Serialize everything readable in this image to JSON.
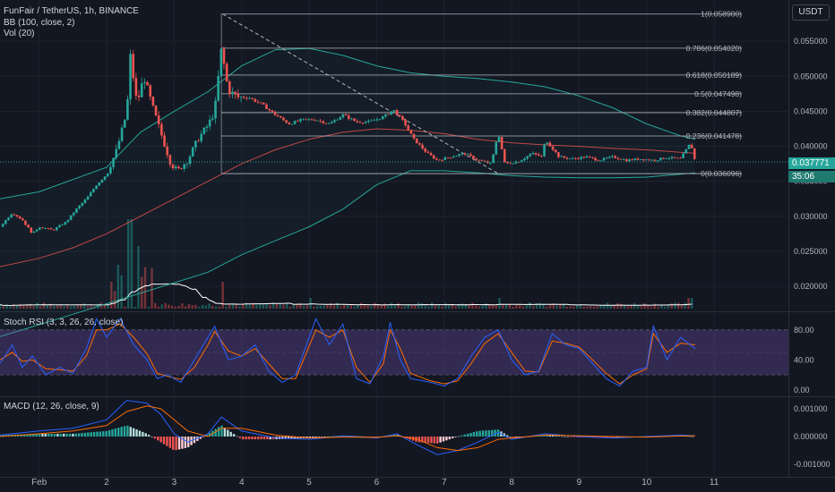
{
  "header": {
    "symbol_line": "FunFair / TetherUS, 1h, BINANCE",
    "bb_line": "BB (100, close, 2)",
    "vol_line": "Vol (20)",
    "currency": "USDT"
  },
  "price_badge": {
    "last": "0.037771",
    "countdown": "35:06"
  },
  "colors": {
    "bg": "#131722",
    "grid": "#1e222d",
    "up": "#26a69a",
    "down": "#ef5350",
    "bb_band": "#26a69a",
    "bb_mid": "#ef5350",
    "fib": "#b2b5be",
    "stoch_k": "#2962ff",
    "stoch_d": "#ff6d00",
    "stoch_fill": "#7e57c2",
    "macd_line": "#2962ff",
    "signal_line": "#ff6d00",
    "vol_ma": "#ffffff"
  },
  "chart_data": [
    {
      "type": "candlestick",
      "symbol": "FunFair / TetherUS",
      "interval": "1h",
      "exchange": "BINANCE",
      "ylim": [
        0.0168,
        0.0604
      ],
      "y_ticks": [
        "0.055000",
        "0.050000",
        "0.045000",
        "0.040000",
        "0.035000",
        "0.030000",
        "0.025000",
        "0.020000"
      ],
      "y_tick_values": [
        0.055,
        0.05,
        0.045,
        0.04,
        0.035,
        0.03,
        0.025,
        0.02
      ],
      "x_ticks": [
        "Feb",
        "2",
        "3",
        "4",
        "5",
        "6",
        "7",
        "8",
        "9",
        "10",
        "11"
      ],
      "x_tick_days": [
        1,
        2,
        3,
        4,
        5,
        6,
        7,
        8,
        9,
        10,
        11
      ],
      "x_range_days": [
        0.42,
        12.1
      ],
      "fib_levels": [
        {
          "ratio": "1",
          "label": "1(0.058900)",
          "value": 0.0589
        },
        {
          "ratio": "0.786",
          "label": "0.786(0.054020)",
          "value": 0.05402
        },
        {
          "ratio": "0.618",
          "label": "0.618(0.050189)",
          "value": 0.050189
        },
        {
          "ratio": "0.5",
          "label": "0.5(0.047498)",
          "value": 0.047498
        },
        {
          "ratio": "0.382",
          "label": "0.382(0.044807)",
          "value": 0.044807
        },
        {
          "ratio": "0.236",
          "label": "0.236(0.041478)",
          "value": 0.041478
        },
        {
          "ratio": "0",
          "label": "0(0.036096)",
          "value": 0.036096
        }
      ],
      "fib_start_day": 3.7,
      "fib_trend_line": {
        "from": [
          3.72,
          0.0589
        ],
        "to": [
          7.8,
          0.0361
        ]
      },
      "last_price": 0.037771,
      "price_points": [
        [
          0.42,
          0.0285
        ],
        [
          0.6,
          0.0305
        ],
        [
          0.75,
          0.0295
        ],
        [
          0.9,
          0.0275
        ],
        [
          1.0,
          0.0285
        ],
        [
          1.2,
          0.028
        ],
        [
          1.4,
          0.0292
        ],
        [
          1.55,
          0.031
        ],
        [
          1.7,
          0.0325
        ],
        [
          1.85,
          0.0345
        ],
        [
          2.0,
          0.036
        ],
        [
          2.15,
          0.0395
        ],
        [
          2.3,
          0.045
        ],
        [
          2.35,
          0.053
        ],
        [
          2.45,
          0.046
        ],
        [
          2.55,
          0.05
        ],
        [
          2.7,
          0.045
        ],
        [
          2.8,
          0.042
        ],
        [
          2.95,
          0.0375
        ],
        [
          3.05,
          0.0365
        ],
        [
          3.2,
          0.038
        ],
        [
          3.35,
          0.041
        ],
        [
          3.5,
          0.043
        ],
        [
          3.6,
          0.045
        ],
        [
          3.7,
          0.054
        ],
        [
          3.8,
          0.048
        ],
        [
          3.95,
          0.047
        ],
        [
          4.1,
          0.047
        ],
        [
          4.3,
          0.046
        ],
        [
          4.5,
          0.0445
        ],
        [
          4.7,
          0.0432
        ],
        [
          4.9,
          0.0438
        ],
        [
          5.1,
          0.0438
        ],
        [
          5.3,
          0.0432
        ],
        [
          5.5,
          0.0445
        ],
        [
          5.7,
          0.0435
        ],
        [
          5.9,
          0.0435
        ],
        [
          6.1,
          0.0442
        ],
        [
          6.25,
          0.0452
        ],
        [
          6.4,
          0.0435
        ],
        [
          6.55,
          0.041
        ],
        [
          6.75,
          0.039
        ],
        [
          6.9,
          0.038
        ],
        [
          7.1,
          0.0385
        ],
        [
          7.3,
          0.039
        ],
        [
          7.5,
          0.038
        ],
        [
          7.7,
          0.0375
        ],
        [
          7.8,
          0.042
        ],
        [
          7.9,
          0.0375
        ],
        [
          8.1,
          0.0378
        ],
        [
          8.3,
          0.039
        ],
        [
          8.45,
          0.0385
        ],
        [
          8.5,
          0.041
        ],
        [
          8.7,
          0.0385
        ],
        [
          8.9,
          0.0382
        ],
        [
          9.1,
          0.0385
        ],
        [
          9.3,
          0.038
        ],
        [
          9.5,
          0.0385
        ],
        [
          9.7,
          0.038
        ],
        [
          9.9,
          0.0382
        ],
        [
          10.1,
          0.038
        ],
        [
          10.3,
          0.0384
        ],
        [
          10.5,
          0.0382
        ],
        [
          10.65,
          0.0405
        ],
        [
          10.72,
          0.03777
        ]
      ],
      "bb_upper": [
        [
          0.42,
          0.0325
        ],
        [
          1.0,
          0.0335
        ],
        [
          2.0,
          0.037
        ],
        [
          2.5,
          0.042
        ],
        [
          3.0,
          0.045
        ],
        [
          3.5,
          0.0478
        ],
        [
          4.0,
          0.0515
        ],
        [
          4.5,
          0.0538
        ],
        [
          5.0,
          0.054
        ],
        [
          5.5,
          0.053
        ],
        [
          6.0,
          0.0515
        ],
        [
          6.5,
          0.0505
        ],
        [
          7.0,
          0.05
        ],
        [
          7.5,
          0.0497
        ],
        [
          8.0,
          0.0492
        ],
        [
          8.5,
          0.0485
        ],
        [
          9.0,
          0.0472
        ],
        [
          9.5,
          0.0455
        ],
        [
          10.0,
          0.0432
        ],
        [
          10.5,
          0.0415
        ],
        [
          10.72,
          0.041
        ]
      ],
      "bb_middle": [
        [
          0.42,
          0.0228
        ],
        [
          1.0,
          0.024
        ],
        [
          1.5,
          0.0255
        ],
        [
          2.0,
          0.0275
        ],
        [
          2.5,
          0.03
        ],
        [
          3.0,
          0.0325
        ],
        [
          3.5,
          0.035
        ],
        [
          4.0,
          0.0375
        ],
        [
          4.5,
          0.0395
        ],
        [
          5.0,
          0.041
        ],
        [
          5.5,
          0.042
        ],
        [
          6.0,
          0.0425
        ],
        [
          6.5,
          0.0423
        ],
        [
          7.0,
          0.0418
        ],
        [
          7.5,
          0.041
        ],
        [
          8.0,
          0.0405
        ],
        [
          8.5,
          0.0402
        ],
        [
          9.0,
          0.04
        ],
        [
          9.5,
          0.0397
        ],
        [
          10.0,
          0.0395
        ],
        [
          10.72,
          0.039
        ]
      ],
      "bb_lower": [
        [
          0.42,
          0.0128
        ],
        [
          1.0,
          0.0145
        ],
        [
          1.5,
          0.016
        ],
        [
          2.0,
          0.0175
        ],
        [
          2.5,
          0.019
        ],
        [
          3.0,
          0.0205
        ],
        [
          3.5,
          0.022
        ],
        [
          4.0,
          0.0245
        ],
        [
          4.5,
          0.0265
        ],
        [
          5.0,
          0.0285
        ],
        [
          5.5,
          0.031
        ],
        [
          6.0,
          0.0345
        ],
        [
          6.5,
          0.0365
        ],
        [
          7.0,
          0.0365
        ],
        [
          7.5,
          0.0362
        ],
        [
          8.0,
          0.0358
        ],
        [
          8.5,
          0.0356
        ],
        [
          9.0,
          0.0355
        ],
        [
          9.5,
          0.0355
        ],
        [
          10.0,
          0.0356
        ],
        [
          10.72,
          0.0362
        ]
      ]
    },
    {
      "type": "bar",
      "name": "Vol (20)",
      "note": "volume bars with 20-period moving average line",
      "spikes": [
        [
          2.35,
          1.0
        ],
        [
          2.2,
          0.55
        ],
        [
          2.45,
          0.7
        ],
        [
          2.55,
          0.5
        ],
        [
          3.7,
          0.3
        ],
        [
          2.1,
          0.3
        ],
        [
          5.0,
          0.12
        ],
        [
          7.8,
          0.12
        ],
        [
          10.65,
          0.12
        ]
      ]
    },
    {
      "type": "line",
      "name": "Stoch RSI",
      "label": "Stoch RSI (3, 3, 26, 26, close)",
      "ylim": [
        -5,
        100
      ],
      "y_ticks": [
        "80.00",
        "40.00",
        "0.00"
      ],
      "y_tick_values": [
        80,
        40,
        0
      ],
      "band": [
        20,
        80
      ],
      "k_points": [
        [
          0.42,
          35
        ],
        [
          0.6,
          60
        ],
        [
          0.75,
          30
        ],
        [
          0.9,
          45
        ],
        [
          1.1,
          20
        ],
        [
          1.3,
          30
        ],
        [
          1.5,
          22
        ],
        [
          1.7,
          55
        ],
        [
          1.85,
          95
        ],
        [
          2.0,
          70
        ],
        [
          2.2,
          95
        ],
        [
          2.4,
          60
        ],
        [
          2.6,
          40
        ],
        [
          2.75,
          15
        ],
        [
          2.9,
          20
        ],
        [
          3.1,
          10
        ],
        [
          3.3,
          40
        ],
        [
          3.5,
          70
        ],
        [
          3.6,
          85
        ],
        [
          3.8,
          40
        ],
        [
          4.0,
          45
        ],
        [
          4.2,
          60
        ],
        [
          4.4,
          25
        ],
        [
          4.6,
          10
        ],
        [
          4.8,
          20
        ],
        [
          5.1,
          95
        ],
        [
          5.3,
          60
        ],
        [
          5.5,
          88
        ],
        [
          5.7,
          15
        ],
        [
          5.9,
          8
        ],
        [
          6.1,
          45
        ],
        [
          6.2,
          90
        ],
        [
          6.35,
          40
        ],
        [
          6.5,
          15
        ],
        [
          6.8,
          10
        ],
        [
          7.0,
          5
        ],
        [
          7.2,
          15
        ],
        [
          7.4,
          45
        ],
        [
          7.6,
          70
        ],
        [
          7.8,
          80
        ],
        [
          8.0,
          40
        ],
        [
          8.2,
          20
        ],
        [
          8.4,
          25
        ],
        [
          8.6,
          75
        ],
        [
          8.8,
          60
        ],
        [
          9.0,
          55
        ],
        [
          9.2,
          35
        ],
        [
          9.4,
          15
        ],
        [
          9.6,
          5
        ],
        [
          9.8,
          25
        ],
        [
          10.0,
          30
        ],
        [
          10.1,
          85
        ],
        [
          10.3,
          40
        ],
        [
          10.5,
          70
        ],
        [
          10.72,
          55
        ]
      ],
      "d_points": [
        [
          0.42,
          40
        ],
        [
          0.6,
          50
        ],
        [
          0.75,
          38
        ],
        [
          0.9,
          40
        ],
        [
          1.1,
          28
        ],
        [
          1.3,
          27
        ],
        [
          1.5,
          25
        ],
        [
          1.7,
          45
        ],
        [
          1.85,
          80
        ],
        [
          2.0,
          80
        ],
        [
          2.2,
          88
        ],
        [
          2.4,
          70
        ],
        [
          2.6,
          48
        ],
        [
          2.75,
          22
        ],
        [
          2.9,
          18
        ],
        [
          3.1,
          14
        ],
        [
          3.3,
          30
        ],
        [
          3.5,
          60
        ],
        [
          3.6,
          78
        ],
        [
          3.8,
          52
        ],
        [
          4.0,
          45
        ],
        [
          4.2,
          55
        ],
        [
          4.4,
          35
        ],
        [
          4.6,
          15
        ],
        [
          4.8,
          15
        ],
        [
          5.1,
          80
        ],
        [
          5.3,
          70
        ],
        [
          5.5,
          80
        ],
        [
          5.7,
          30
        ],
        [
          5.9,
          10
        ],
        [
          6.1,
          35
        ],
        [
          6.2,
          80
        ],
        [
          6.35,
          55
        ],
        [
          6.5,
          22
        ],
        [
          6.8,
          12
        ],
        [
          7.0,
          8
        ],
        [
          7.2,
          12
        ],
        [
          7.4,
          35
        ],
        [
          7.6,
          62
        ],
        [
          7.8,
          75
        ],
        [
          8.0,
          50
        ],
        [
          8.2,
          25
        ],
        [
          8.4,
          24
        ],
        [
          8.6,
          65
        ],
        [
          8.8,
          62
        ],
        [
          9.0,
          57
        ],
        [
          9.2,
          40
        ],
        [
          9.4,
          22
        ],
        [
          9.6,
          8
        ],
        [
          9.8,
          20
        ],
        [
          10.0,
          28
        ],
        [
          10.1,
          75
        ],
        [
          10.3,
          50
        ],
        [
          10.5,
          62
        ],
        [
          10.72,
          60
        ]
      ]
    },
    {
      "type": "line",
      "name": "MACD",
      "label": "MACD (12, 26, close, 9)",
      "ylim": [
        -0.00135,
        0.00135
      ],
      "y_ticks": [
        "0.001000",
        "0.000000",
        "-0.001000"
      ],
      "y_tick_values": [
        0.001,
        0.0,
        -0.001
      ],
      "macd_points": [
        [
          0.42,
          5e-05
        ],
        [
          1.0,
          0.0002
        ],
        [
          1.5,
          0.0003
        ],
        [
          2.0,
          0.0006
        ],
        [
          2.3,
          0.0013
        ],
        [
          2.6,
          0.0012
        ],
        [
          2.8,
          0.0008
        ],
        [
          3.0,
          0.0001
        ],
        [
          3.2,
          -0.0002
        ],
        [
          3.5,
          0.0001
        ],
        [
          3.7,
          0.0007
        ],
        [
          4.0,
          0.0002
        ],
        [
          4.5,
          -5e-05
        ],
        [
          5.0,
          -0.0001
        ],
        [
          5.5,
          2e-05
        ],
        [
          6.0,
          -5e-05
        ],
        [
          6.3,
          0.0001
        ],
        [
          6.6,
          -0.0003
        ],
        [
          6.9,
          -0.00065
        ],
        [
          7.2,
          -0.0005
        ],
        [
          7.5,
          -0.0002
        ],
        [
          7.8,
          0.00015
        ],
        [
          8.0,
          -0.0001
        ],
        [
          8.5,
          0.0001
        ],
        [
          9.0,
          0.0
        ],
        [
          9.5,
          -5e-05
        ],
        [
          10.0,
          0.0
        ],
        [
          10.5,
          5e-05
        ],
        [
          10.72,
          3e-05
        ]
      ],
      "signal_points": [
        [
          0.42,
          0.0
        ],
        [
          1.0,
          0.0001
        ],
        [
          1.5,
          0.0002
        ],
        [
          2.0,
          0.0004
        ],
        [
          2.3,
          0.0009
        ],
        [
          2.6,
          0.0011
        ],
        [
          2.8,
          0.001
        ],
        [
          3.0,
          0.0006
        ],
        [
          3.2,
          0.0002
        ],
        [
          3.5,
          0.0
        ],
        [
          3.7,
          0.0003
        ],
        [
          4.0,
          0.0003
        ],
        [
          4.5,
          5e-05
        ],
        [
          5.0,
          -5e-05
        ],
        [
          5.5,
          -2e-05
        ],
        [
          6.0,
          -3e-05
        ],
        [
          6.3,
          3e-05
        ],
        [
          6.6,
          -0.0001
        ],
        [
          6.9,
          -0.0004
        ],
        [
          7.2,
          -0.0005
        ],
        [
          7.5,
          -0.0004
        ],
        [
          7.8,
          -0.0001
        ],
        [
          8.0,
          -5e-05
        ],
        [
          8.5,
          5e-05
        ],
        [
          9.0,
          3e-05
        ],
        [
          9.5,
          0.0
        ],
        [
          10.0,
          -2e-05
        ],
        [
          10.5,
          2e-05
        ],
        [
          10.72,
          3e-05
        ]
      ]
    }
  ]
}
